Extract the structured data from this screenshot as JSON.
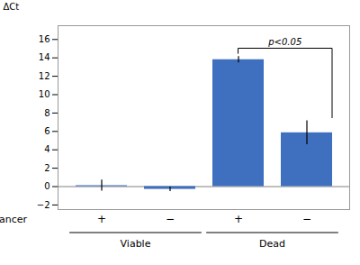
{
  "chart_data": {
    "type": "bar",
    "categories": [
      "+",
      "−",
      "+",
      "−"
    ],
    "groups": [
      "Viable",
      "Viable",
      "Dead",
      "Dead"
    ],
    "xlabel": "Enhancer",
    "values": [
      0.1,
      -0.3,
      13.8,
      5.85
    ],
    "errors": [
      0.6,
      0.25,
      0.35,
      1.3
    ],
    "color": "#3F6FBF",
    "ylabel": "ΔCt",
    "ylim": [
      -2.5,
      17.5
    ],
    "yticks": [
      -2,
      0,
      2,
      4,
      6,
      8,
      10,
      12,
      14,
      16
    ],
    "annotations": [
      {
        "text": "p<0.05",
        "from": 2,
        "to": 3,
        "y": 15.0,
        "y_left": 14.4,
        "y_right": 7.4
      }
    ]
  }
}
